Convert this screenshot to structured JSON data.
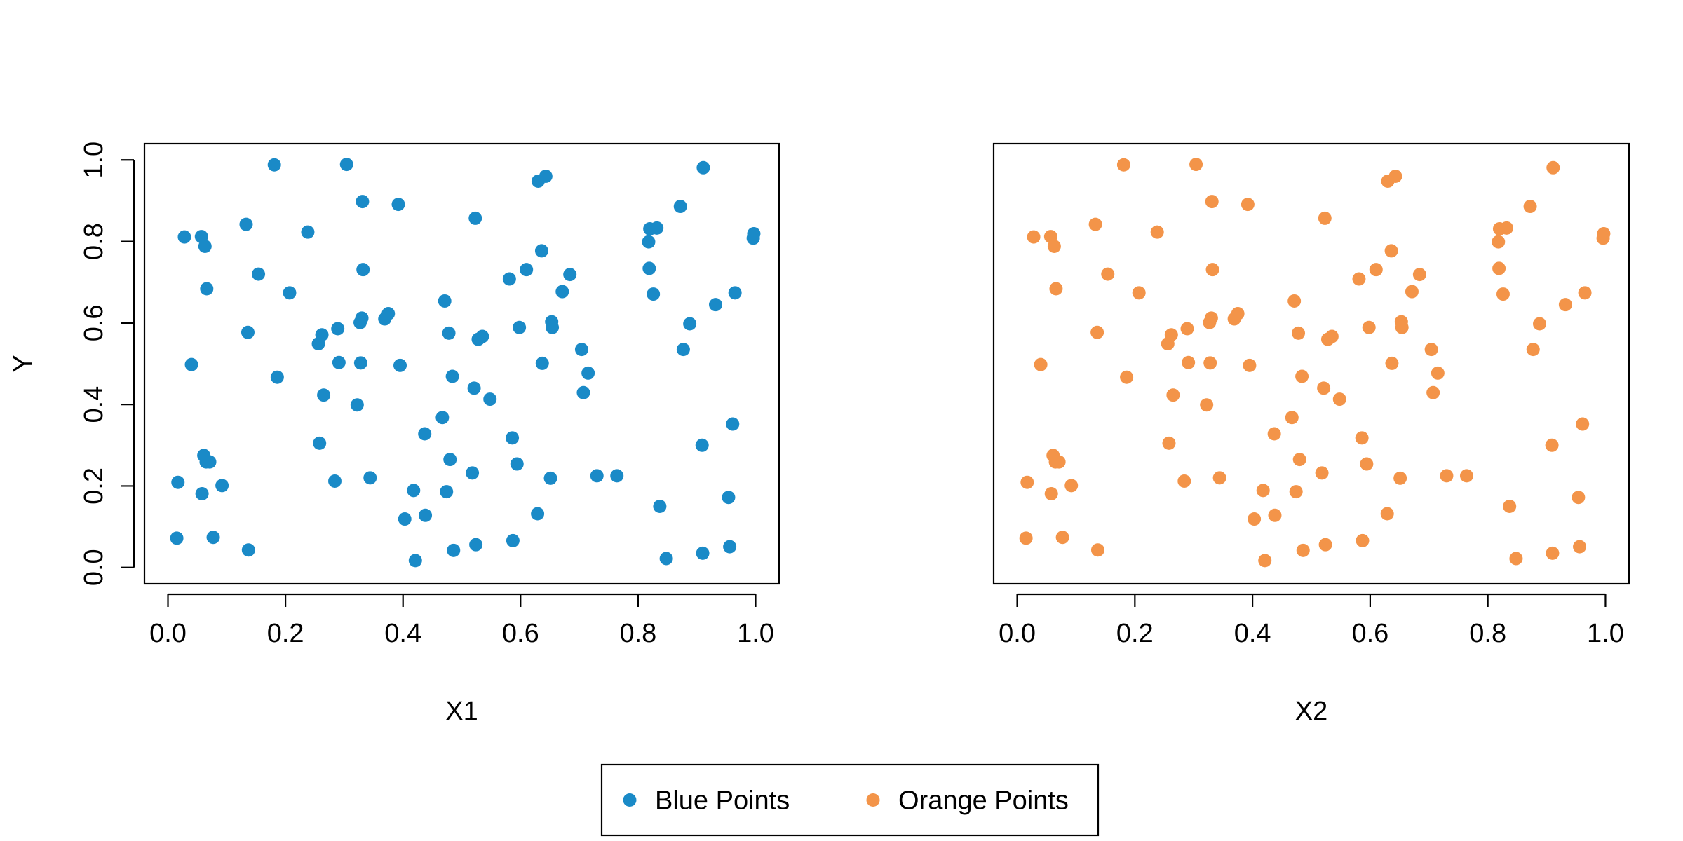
{
  "chart_data": [
    {
      "type": "scatter",
      "title": "",
      "xlabel": "X1",
      "ylabel": "Y",
      "xlim": [
        0,
        1
      ],
      "ylim": [
        0,
        1
      ],
      "xticks": [
        "0.0",
        "0.2",
        "0.4",
        "0.6",
        "0.8",
        "1.0"
      ],
      "yticks": [
        "0.0",
        "0.2",
        "0.4",
        "0.6",
        "0.8",
        "1.0"
      ],
      "grid": false,
      "color": "#1a8ac7",
      "series": [
        {
          "name": "Blue Points",
          "points": [
            [
              0.015,
              0.072
            ],
            [
              0.017,
              0.209
            ],
            [
              0.028,
              0.811
            ],
            [
              0.04,
              0.498
            ],
            [
              0.057,
              0.812
            ],
            [
              0.058,
              0.181
            ],
            [
              0.061,
              0.275
            ],
            [
              0.063,
              0.788
            ],
            [
              0.065,
              0.259
            ],
            [
              0.066,
              0.684
            ],
            [
              0.071,
              0.259
            ],
            [
              0.077,
              0.074
            ],
            [
              0.092,
              0.201
            ],
            [
              0.133,
              0.842
            ],
            [
              0.136,
              0.577
            ],
            [
              0.137,
              0.043
            ],
            [
              0.154,
              0.72
            ],
            [
              0.181,
              0.988
            ],
            [
              0.186,
              0.467
            ],
            [
              0.207,
              0.674
            ],
            [
              0.238,
              0.823
            ],
            [
              0.256,
              0.549
            ],
            [
              0.258,
              0.305
            ],
            [
              0.262,
              0.571
            ],
            [
              0.265,
              0.423
            ],
            [
              0.284,
              0.212
            ],
            [
              0.289,
              0.586
            ],
            [
              0.291,
              0.503
            ],
            [
              0.304,
              0.989
            ],
            [
              0.322,
              0.399
            ],
            [
              0.327,
              0.601
            ],
            [
              0.328,
              0.502
            ],
            [
              0.33,
              0.612
            ],
            [
              0.331,
              0.898
            ],
            [
              0.332,
              0.731
            ],
            [
              0.344,
              0.22
            ],
            [
              0.369,
              0.61
            ],
            [
              0.375,
              0.623
            ],
            [
              0.392,
              0.891
            ],
            [
              0.395,
              0.496
            ],
            [
              0.403,
              0.119
            ],
            [
              0.418,
              0.189
            ],
            [
              0.421,
              0.017
            ],
            [
              0.437,
              0.328
            ],
            [
              0.438,
              0.128
            ],
            [
              0.467,
              0.368
            ],
            [
              0.471,
              0.654
            ],
            [
              0.474,
              0.186
            ],
            [
              0.478,
              0.575
            ],
            [
              0.48,
              0.265
            ],
            [
              0.484,
              0.469
            ],
            [
              0.486,
              0.042
            ],
            [
              0.518,
              0.232
            ],
            [
              0.521,
              0.44
            ],
            [
              0.523,
              0.857
            ],
            [
              0.524,
              0.056
            ],
            [
              0.528,
              0.56
            ],
            [
              0.535,
              0.567
            ],
            [
              0.548,
              0.413
            ],
            [
              0.581,
              0.708
            ],
            [
              0.586,
              0.318
            ],
            [
              0.587,
              0.066
            ],
            [
              0.594,
              0.254
            ],
            [
              0.598,
              0.589
            ],
            [
              0.61,
              0.731
            ],
            [
              0.629,
              0.132
            ],
            [
              0.63,
              0.948
            ],
            [
              0.636,
              0.777
            ],
            [
              0.637,
              0.501
            ],
            [
              0.643,
              0.96
            ],
            [
              0.651,
              0.219
            ],
            [
              0.653,
              0.603
            ],
            [
              0.654,
              0.589
            ],
            [
              0.671,
              0.677
            ],
            [
              0.684,
              0.719
            ],
            [
              0.704,
              0.535
            ],
            [
              0.707,
              0.429
            ],
            [
              0.715,
              0.477
            ],
            [
              0.73,
              0.225
            ],
            [
              0.764,
              0.225
            ],
            [
              0.818,
              0.799
            ],
            [
              0.819,
              0.734
            ],
            [
              0.82,
              0.831
            ],
            [
              0.826,
              0.671
            ],
            [
              0.832,
              0.833
            ],
            [
              0.837,
              0.15
            ],
            [
              0.848,
              0.022
            ],
            [
              0.872,
              0.886
            ],
            [
              0.877,
              0.535
            ],
            [
              0.888,
              0.598
            ],
            [
              0.909,
              0.3
            ],
            [
              0.91,
              0.035
            ],
            [
              0.911,
              0.981
            ],
            [
              0.932,
              0.645
            ],
            [
              0.954,
              0.172
            ],
            [
              0.956,
              0.051
            ],
            [
              0.961,
              0.352
            ],
            [
              0.965,
              0.674
            ],
            [
              0.996,
              0.808
            ],
            [
              0.997,
              0.819
            ]
          ]
        }
      ]
    },
    {
      "type": "scatter",
      "title": "",
      "xlabel": "X2",
      "ylabel": "",
      "xlim": [
        0,
        1
      ],
      "ylim": [
        0,
        1
      ],
      "xticks": [
        "0.0",
        "0.2",
        "0.4",
        "0.6",
        "0.8",
        "1.0"
      ],
      "yticks": [],
      "grid": false,
      "color": "#f39449",
      "series": [
        {
          "name": "Orange Points",
          "points": [
            [
              0.015,
              0.072
            ],
            [
              0.017,
              0.209
            ],
            [
              0.028,
              0.811
            ],
            [
              0.04,
              0.498
            ],
            [
              0.057,
              0.812
            ],
            [
              0.058,
              0.181
            ],
            [
              0.061,
              0.275
            ],
            [
              0.063,
              0.788
            ],
            [
              0.065,
              0.259
            ],
            [
              0.066,
              0.684
            ],
            [
              0.071,
              0.259
            ],
            [
              0.077,
              0.074
            ],
            [
              0.092,
              0.201
            ],
            [
              0.133,
              0.842
            ],
            [
              0.136,
              0.577
            ],
            [
              0.137,
              0.043
            ],
            [
              0.154,
              0.72
            ],
            [
              0.181,
              0.988
            ],
            [
              0.186,
              0.467
            ],
            [
              0.207,
              0.674
            ],
            [
              0.238,
              0.823
            ],
            [
              0.256,
              0.549
            ],
            [
              0.258,
              0.305
            ],
            [
              0.262,
              0.571
            ],
            [
              0.265,
              0.423
            ],
            [
              0.284,
              0.212
            ],
            [
              0.289,
              0.586
            ],
            [
              0.291,
              0.503
            ],
            [
              0.304,
              0.989
            ],
            [
              0.322,
              0.399
            ],
            [
              0.327,
              0.601
            ],
            [
              0.328,
              0.502
            ],
            [
              0.33,
              0.612
            ],
            [
              0.331,
              0.898
            ],
            [
              0.332,
              0.731
            ],
            [
              0.344,
              0.22
            ],
            [
              0.369,
              0.61
            ],
            [
              0.375,
              0.623
            ],
            [
              0.392,
              0.891
            ],
            [
              0.395,
              0.496
            ],
            [
              0.403,
              0.119
            ],
            [
              0.418,
              0.189
            ],
            [
              0.421,
              0.017
            ],
            [
              0.437,
              0.328
            ],
            [
              0.438,
              0.128
            ],
            [
              0.467,
              0.368
            ],
            [
              0.471,
              0.654
            ],
            [
              0.474,
              0.186
            ],
            [
              0.478,
              0.575
            ],
            [
              0.48,
              0.265
            ],
            [
              0.484,
              0.469
            ],
            [
              0.486,
              0.042
            ],
            [
              0.518,
              0.232
            ],
            [
              0.521,
              0.44
            ],
            [
              0.523,
              0.857
            ],
            [
              0.524,
              0.056
            ],
            [
              0.528,
              0.56
            ],
            [
              0.535,
              0.567
            ],
            [
              0.548,
              0.413
            ],
            [
              0.581,
              0.708
            ],
            [
              0.586,
              0.318
            ],
            [
              0.587,
              0.066
            ],
            [
              0.594,
              0.254
            ],
            [
              0.598,
              0.589
            ],
            [
              0.61,
              0.731
            ],
            [
              0.629,
              0.132
            ],
            [
              0.63,
              0.948
            ],
            [
              0.636,
              0.777
            ],
            [
              0.637,
              0.501
            ],
            [
              0.643,
              0.96
            ],
            [
              0.651,
              0.219
            ],
            [
              0.653,
              0.603
            ],
            [
              0.654,
              0.589
            ],
            [
              0.671,
              0.677
            ],
            [
              0.684,
              0.719
            ],
            [
              0.704,
              0.535
            ],
            [
              0.707,
              0.429
            ],
            [
              0.715,
              0.477
            ],
            [
              0.73,
              0.225
            ],
            [
              0.764,
              0.225
            ],
            [
              0.818,
              0.799
            ],
            [
              0.819,
              0.734
            ],
            [
              0.82,
              0.831
            ],
            [
              0.826,
              0.671
            ],
            [
              0.832,
              0.833
            ],
            [
              0.837,
              0.15
            ],
            [
              0.848,
              0.022
            ],
            [
              0.872,
              0.886
            ],
            [
              0.877,
              0.535
            ],
            [
              0.888,
              0.598
            ],
            [
              0.909,
              0.3
            ],
            [
              0.91,
              0.035
            ],
            [
              0.911,
              0.981
            ],
            [
              0.932,
              0.645
            ],
            [
              0.954,
              0.172
            ],
            [
              0.956,
              0.051
            ],
            [
              0.961,
              0.352
            ],
            [
              0.965,
              0.674
            ],
            [
              0.996,
              0.808
            ],
            [
              0.997,
              0.819
            ]
          ]
        }
      ]
    }
  ],
  "legend": {
    "placement": "bottom-center",
    "items": [
      {
        "label": "Blue Points",
        "color": "#1a8ac7"
      },
      {
        "label": "Orange Points",
        "color": "#f39449"
      }
    ]
  }
}
